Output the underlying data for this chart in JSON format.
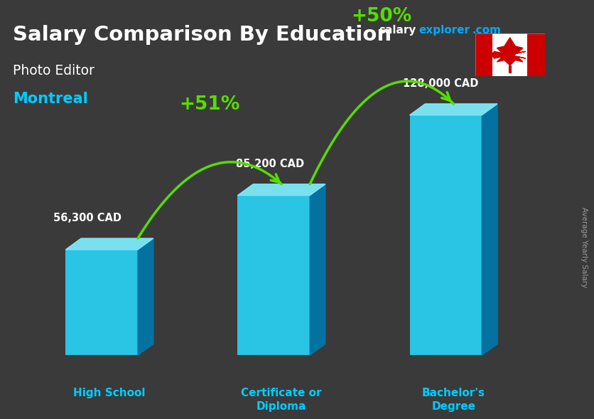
{
  "title": "Salary Comparison By Education",
  "subtitle": "Photo Editor",
  "location": "Montreal",
  "ylabel": "Average Yearly Salary",
  "categories": [
    "High School",
    "Certificate or\nDiploma",
    "Bachelor's\nDegree"
  ],
  "values": [
    56300,
    85200,
    128000
  ],
  "value_labels": [
    "56,300 CAD",
    "85,200 CAD",
    "128,000 CAD"
  ],
  "pct_changes": [
    "+51%",
    "+50%"
  ],
  "bar_color_front": "#29d1f5",
  "bar_color_top": "#80eeff",
  "bar_color_side": "#0077aa",
  "bg_color": "#3a3a3a",
  "title_color": "#ffffff",
  "subtitle_color": "#ffffff",
  "location_color": "#00ccff",
  "category_color": "#00ccff",
  "value_color": "#ffffff",
  "pct_color": "#aaff00",
  "arrow_color": "#55dd00",
  "xlim": [
    -0.55,
    2.75
  ],
  "ylim": [
    -18000,
    175000
  ],
  "figsize": [
    8.5,
    6.06
  ],
  "dpi": 100
}
